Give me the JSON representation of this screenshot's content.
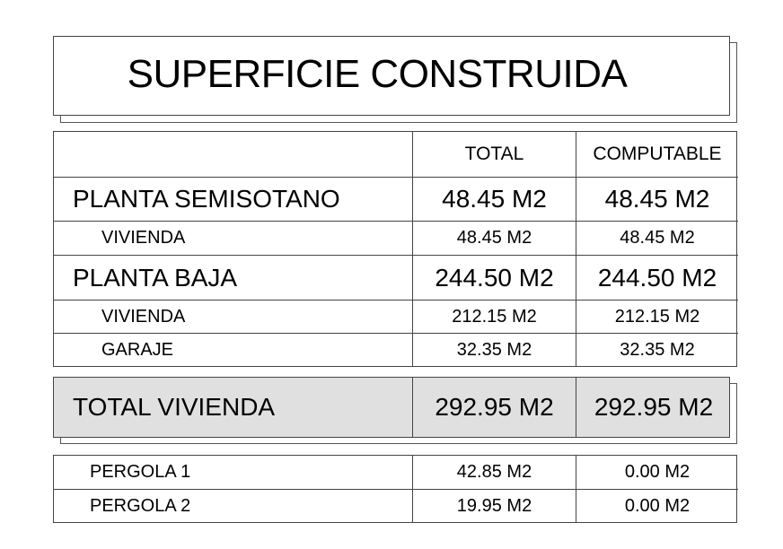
{
  "title": "SUPERFICIE CONSTRUIDA",
  "columns": {
    "total": "TOTAL",
    "computable": "COMPUTABLE"
  },
  "rows": [
    {
      "label": "PLANTA SEMISOTANO",
      "total": "48.45 M2",
      "computable": "48.45 M2",
      "level": "main"
    },
    {
      "label": "VIVIENDA",
      "total": "48.45 M2",
      "computable": "48.45 M2",
      "level": "sub"
    },
    {
      "label": "PLANTA BAJA",
      "total": "244.50 M2",
      "computable": "244.50 M2",
      "level": "main"
    },
    {
      "label": "VIVIENDA",
      "total": "212.15 M2",
      "computable": "212.15 M2",
      "level": "sub"
    },
    {
      "label": "GARAJE",
      "total": "32.35 M2",
      "computable": "32.35 M2",
      "level": "sub"
    }
  ],
  "total_row": {
    "label": "TOTAL VIVIENDA",
    "total": "292.95 M2",
    "computable": "292.95 M2",
    "fill": "#e0e0e0"
  },
  "extras": [
    {
      "label": "PERGOLA 1",
      "total": "42.85 M2",
      "computable": "0.00 M2"
    },
    {
      "label": "PERGOLA 2",
      "total": "19.95 M2",
      "computable": "0.00 M2"
    }
  ]
}
